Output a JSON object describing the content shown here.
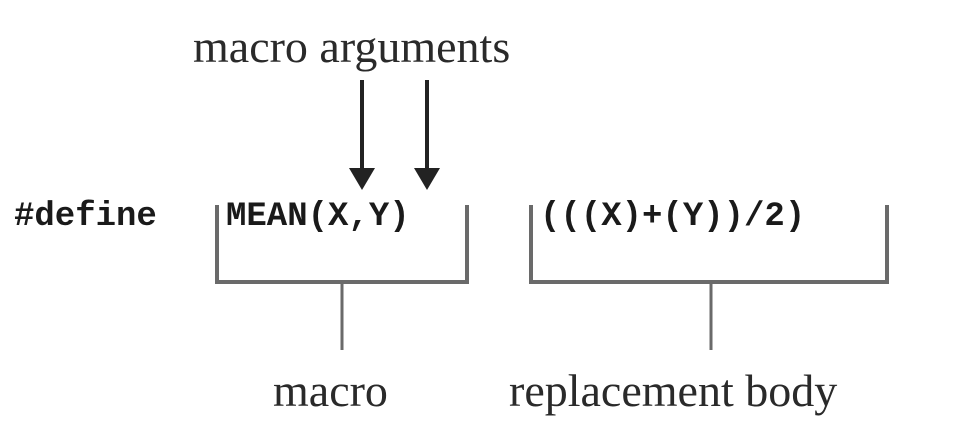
{
  "labels": {
    "macro_arguments": "macro arguments",
    "macro": "macro",
    "replacement_body": "replacement body"
  },
  "code": {
    "directive": "#define",
    "macro_name": "MEAN(X,Y)",
    "replacement": "(((X)+(Y))/2)"
  },
  "colors": {
    "text": "#2a2a2a",
    "arrow": "#222222",
    "bracket": "#6a6a6a"
  }
}
